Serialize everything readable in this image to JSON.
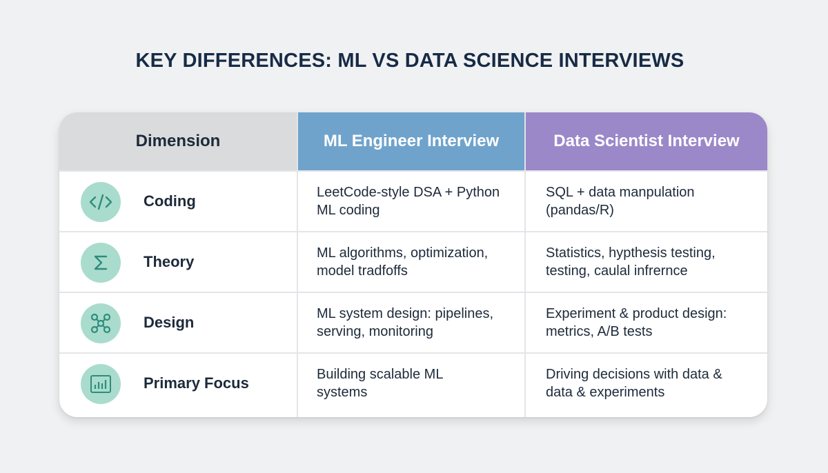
{
  "title": "KEY DIFFERENCES: ML VS DATA SCIENCE INTERVIEWS",
  "headers": {
    "dimension": "Dimension",
    "ml": "ML Engineer Interview",
    "ds": "Data Scientist Interview"
  },
  "colors": {
    "ml_header": "#6fa3cc",
    "ds_header": "#9a88c9",
    "dimension_header": "#dadbdc",
    "icon_circle": "#a9dccd",
    "icon_stroke": "#2f8c7c",
    "title": "#172b46"
  },
  "rows": [
    {
      "icon": "code-icon",
      "label": "Coding",
      "ml": [
        "LeetCode-style DSA + Python",
        "ML coding"
      ],
      "ds": [
        "SQL + data manpulation",
        "(pandas/R)"
      ]
    },
    {
      "icon": "sigma-icon",
      "label": "Theory",
      "ml": [
        "ML algorithms, optimization,",
        "model tradfoffs"
      ],
      "ds": [
        "Statistics, hypthesis testing,",
        "testing, caulal infrernce"
      ]
    },
    {
      "icon": "network-icon",
      "label": "Design",
      "ml": [
        "ML system design: pipelines,",
        "serving, monitoring"
      ],
      "ds": [
        "Experiment & product design:",
        "metrics, A/B tests"
      ]
    },
    {
      "icon": "bar-chart-icon",
      "label": "Primary Focus",
      "ml": [
        "Building scalable ML",
        "systems"
      ],
      "ds": [
        "Driving decisions with data &",
        "data & experiments"
      ]
    }
  ]
}
